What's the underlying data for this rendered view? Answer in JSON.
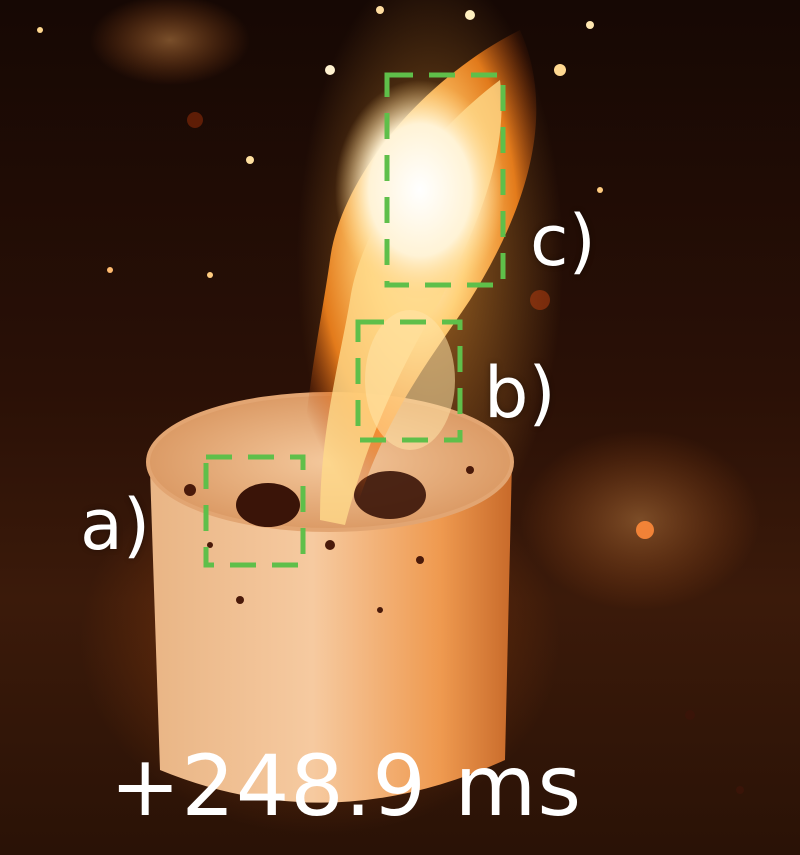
{
  "labels": {
    "a": "a)",
    "b": "b)",
    "c": "c)"
  },
  "timestamp": "+248.9 ms",
  "colors": {
    "marker_box": "#5fbf4a",
    "text": "#ffffff"
  }
}
